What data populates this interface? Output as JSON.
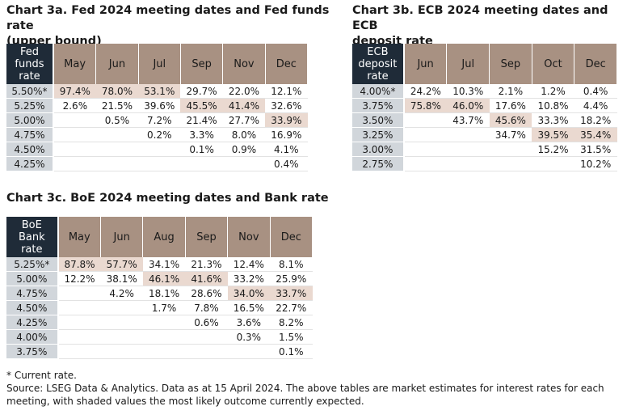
{
  "chart_data": [
    {
      "type": "table",
      "title_lines": [
        "Chart 3a. Fed 2024 meeting dates and Fed funds rate",
        "(upper bound)"
      ],
      "corner_lines": [
        "Fed",
        "funds",
        "rate"
      ],
      "columns": [
        "May",
        "Jun",
        "Jul",
        "Sep",
        "Nov",
        "Dec"
      ],
      "rows": [
        {
          "rate": "5.50%*",
          "values": [
            "97.4%",
            "78.0%",
            "53.1%",
            "29.7%",
            "22.0%",
            "12.1%"
          ],
          "shaded": [
            true,
            true,
            true,
            false,
            false,
            false
          ]
        },
        {
          "rate": "5.25%",
          "values": [
            "2.6%",
            "21.5%",
            "39.6%",
            "45.5%",
            "41.4%",
            "32.6%"
          ],
          "shaded": [
            false,
            false,
            false,
            true,
            true,
            false
          ]
        },
        {
          "rate": "5.00%",
          "values": [
            "",
            "0.5%",
            "7.2%",
            "21.4%",
            "27.7%",
            "33.9%"
          ],
          "shaded": [
            false,
            false,
            false,
            false,
            false,
            true
          ]
        },
        {
          "rate": "4.75%",
          "values": [
            "",
            "",
            "0.2%",
            "3.3%",
            "8.0%",
            "16.9%"
          ],
          "shaded": [
            false,
            false,
            false,
            false,
            false,
            false
          ]
        },
        {
          "rate": "4.50%",
          "values": [
            "",
            "",
            "",
            "0.1%",
            "0.9%",
            "4.1%"
          ],
          "shaded": [
            false,
            false,
            false,
            false,
            false,
            false
          ]
        },
        {
          "rate": "4.25%",
          "values": [
            "",
            "",
            "",
            "",
            "",
            "0.4%"
          ],
          "shaded": [
            false,
            false,
            false,
            false,
            false,
            false
          ]
        }
      ]
    },
    {
      "type": "table",
      "title_lines": [
        "Chart 3b. ECB 2024 meeting dates and ECB",
        "deposit rate"
      ],
      "corner_lines": [
        "ECB",
        "deposit",
        "rate"
      ],
      "columns": [
        "Jun",
        "Jul",
        "Sep",
        "Oct",
        "Dec"
      ],
      "rows": [
        {
          "rate": "4.00%*",
          "values": [
            "24.2%",
            "10.3%",
            "2.1%",
            "1.2%",
            "0.4%"
          ],
          "shaded": [
            false,
            false,
            false,
            false,
            false
          ]
        },
        {
          "rate": "3.75%",
          "values": [
            "75.8%",
            "46.0%",
            "17.6%",
            "10.8%",
            "4.4%"
          ],
          "shaded": [
            true,
            true,
            false,
            false,
            false
          ]
        },
        {
          "rate": "3.50%",
          "values": [
            "",
            "43.7%",
            "45.6%",
            "33.3%",
            "18.2%"
          ],
          "shaded": [
            false,
            false,
            true,
            false,
            false
          ]
        },
        {
          "rate": "3.25%",
          "values": [
            "",
            "",
            "34.7%",
            "39.5%",
            "35.4%"
          ],
          "shaded": [
            false,
            false,
            false,
            true,
            true
          ]
        },
        {
          "rate": "3.00%",
          "values": [
            "",
            "",
            "",
            "15.2%",
            "31.5%"
          ],
          "shaded": [
            false,
            false,
            false,
            false,
            false
          ]
        },
        {
          "rate": "2.75%",
          "values": [
            "",
            "",
            "",
            "",
            "10.2%"
          ],
          "shaded": [
            false,
            false,
            false,
            false,
            false
          ]
        }
      ]
    },
    {
      "type": "table",
      "title_lines": [
        "Chart 3c. BoE 2024 meeting dates and Bank rate"
      ],
      "corner_lines": [
        "BoE",
        "Bank",
        "rate"
      ],
      "columns": [
        "May",
        "Jun",
        "Aug",
        "Sep",
        "Nov",
        "Dec"
      ],
      "rows": [
        {
          "rate": "5.25%*",
          "values": [
            "87.8%",
            "57.7%",
            "34.1%",
            "21.3%",
            "12.4%",
            "8.1%"
          ],
          "shaded": [
            true,
            true,
            false,
            false,
            false,
            false
          ]
        },
        {
          "rate": "5.00%",
          "values": [
            "12.2%",
            "38.1%",
            "46.1%",
            "41.6%",
            "33.2%",
            "25.9%"
          ],
          "shaded": [
            false,
            false,
            true,
            true,
            false,
            false
          ]
        },
        {
          "rate": "4.75%",
          "values": [
            "",
            "4.2%",
            "18.1%",
            "28.6%",
            "34.0%",
            "33.7%"
          ],
          "shaded": [
            false,
            false,
            false,
            false,
            true,
            true
          ]
        },
        {
          "rate": "4.50%",
          "values": [
            "",
            "",
            "1.7%",
            "7.8%",
            "16.5%",
            "22.7%"
          ],
          "shaded": [
            false,
            false,
            false,
            false,
            false,
            false
          ]
        },
        {
          "rate": "4.25%",
          "values": [
            "",
            "",
            "",
            "0.6%",
            "3.6%",
            "8.2%"
          ],
          "shaded": [
            false,
            false,
            false,
            false,
            false,
            false
          ]
        },
        {
          "rate": "4.00%",
          "values": [
            "",
            "",
            "",
            "",
            "0.3%",
            "1.5%"
          ],
          "shaded": [
            false,
            false,
            false,
            false,
            false,
            false
          ]
        },
        {
          "rate": "3.75%",
          "values": [
            "",
            "",
            "",
            "",
            "",
            "0.1%"
          ],
          "shaded": [
            false,
            false,
            false,
            false,
            false,
            false
          ]
        }
      ]
    }
  ],
  "notes": {
    "footnote": "* Current rate.",
    "source": "Source: LSEG Data & Analytics. Data as at 15 April 2024. The above tables are market estimates for interest rates for each meeting, with shaded values the most likely outcome currently expected."
  },
  "colors": {
    "corner_header": "#1f2b38",
    "month_header": "#a89182",
    "rate_column": "#d1d6db",
    "shaded_cell": "#ead9d0"
  }
}
